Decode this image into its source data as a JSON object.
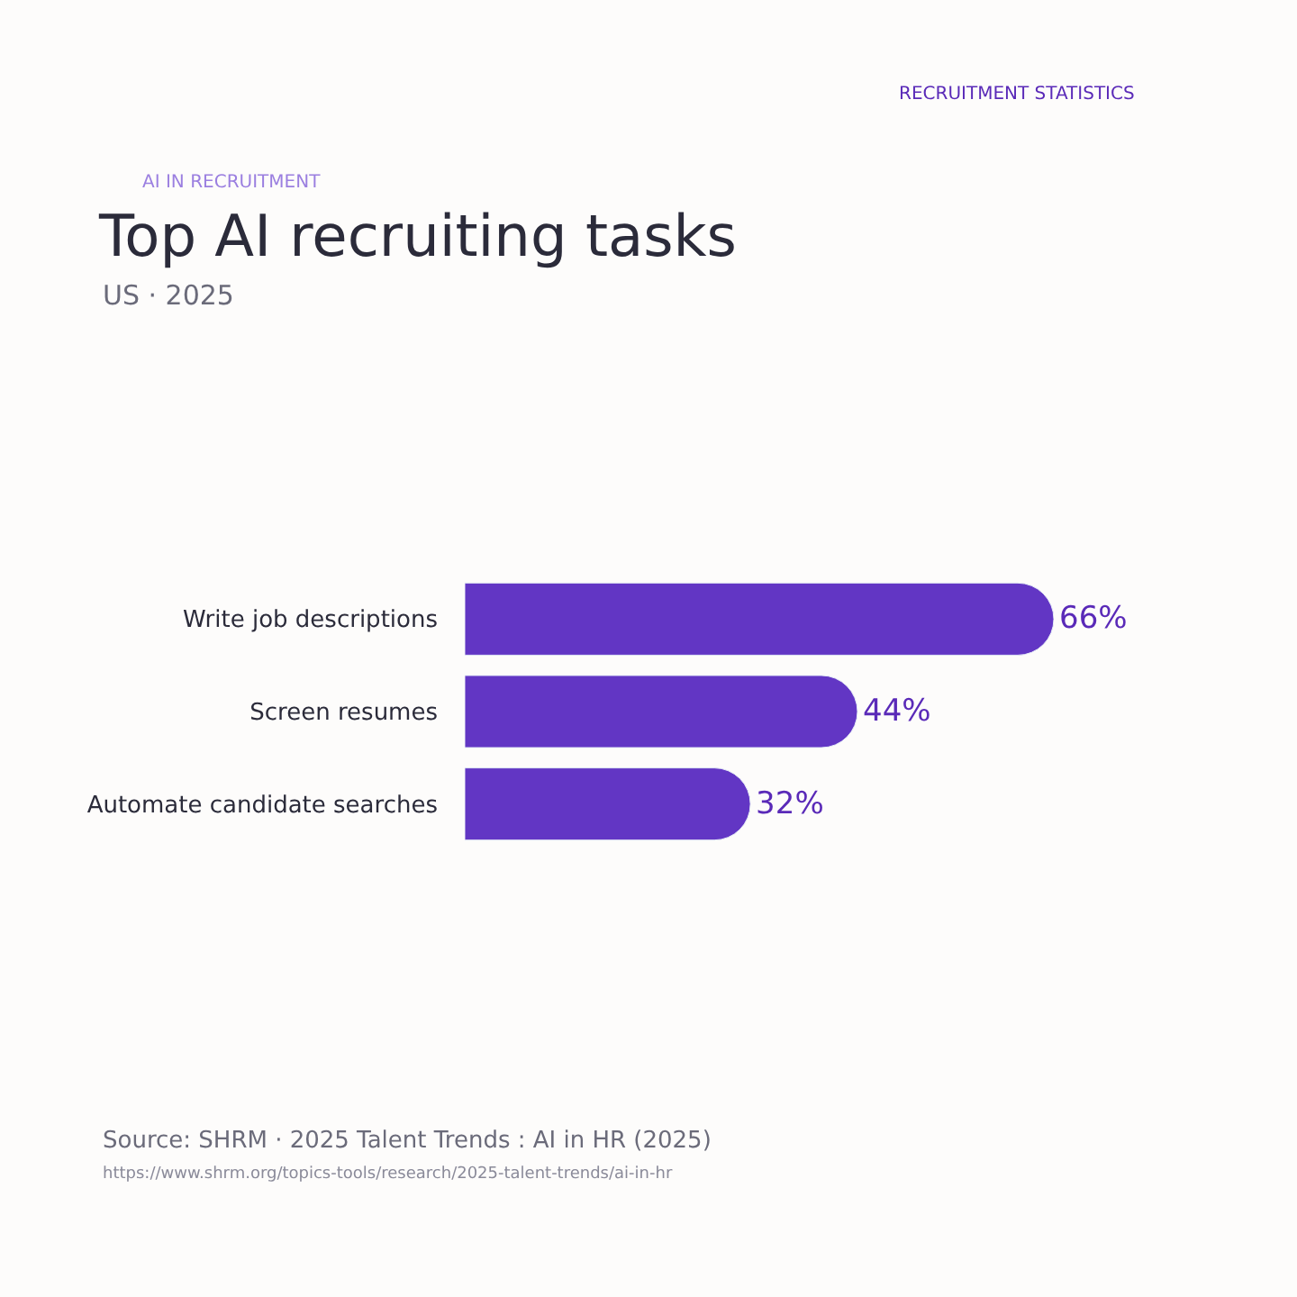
{
  "chart_data": {
    "type": "bar",
    "orientation": "horizontal",
    "title": "Top AI recruiting tasks",
    "subtitle": "US · 2025",
    "categories": [
      "Write job descriptions",
      "Screen resumes",
      "Automate candidate searches"
    ],
    "values": [
      66,
      44,
      32
    ],
    "value_labels": [
      "66%",
      "44%",
      "32%"
    ],
    "color": "#6236c4",
    "annotations": [
      "RECRUITMENT STATISTICS",
      "AI IN RECRUITMENT",
      "Source: SHRM · 2025 Talent Trends : AI in HR (2025)",
      "https://www.shrm.org/topics-tools/research/2025-talent-trends/ai-in-hr"
    ]
  }
}
